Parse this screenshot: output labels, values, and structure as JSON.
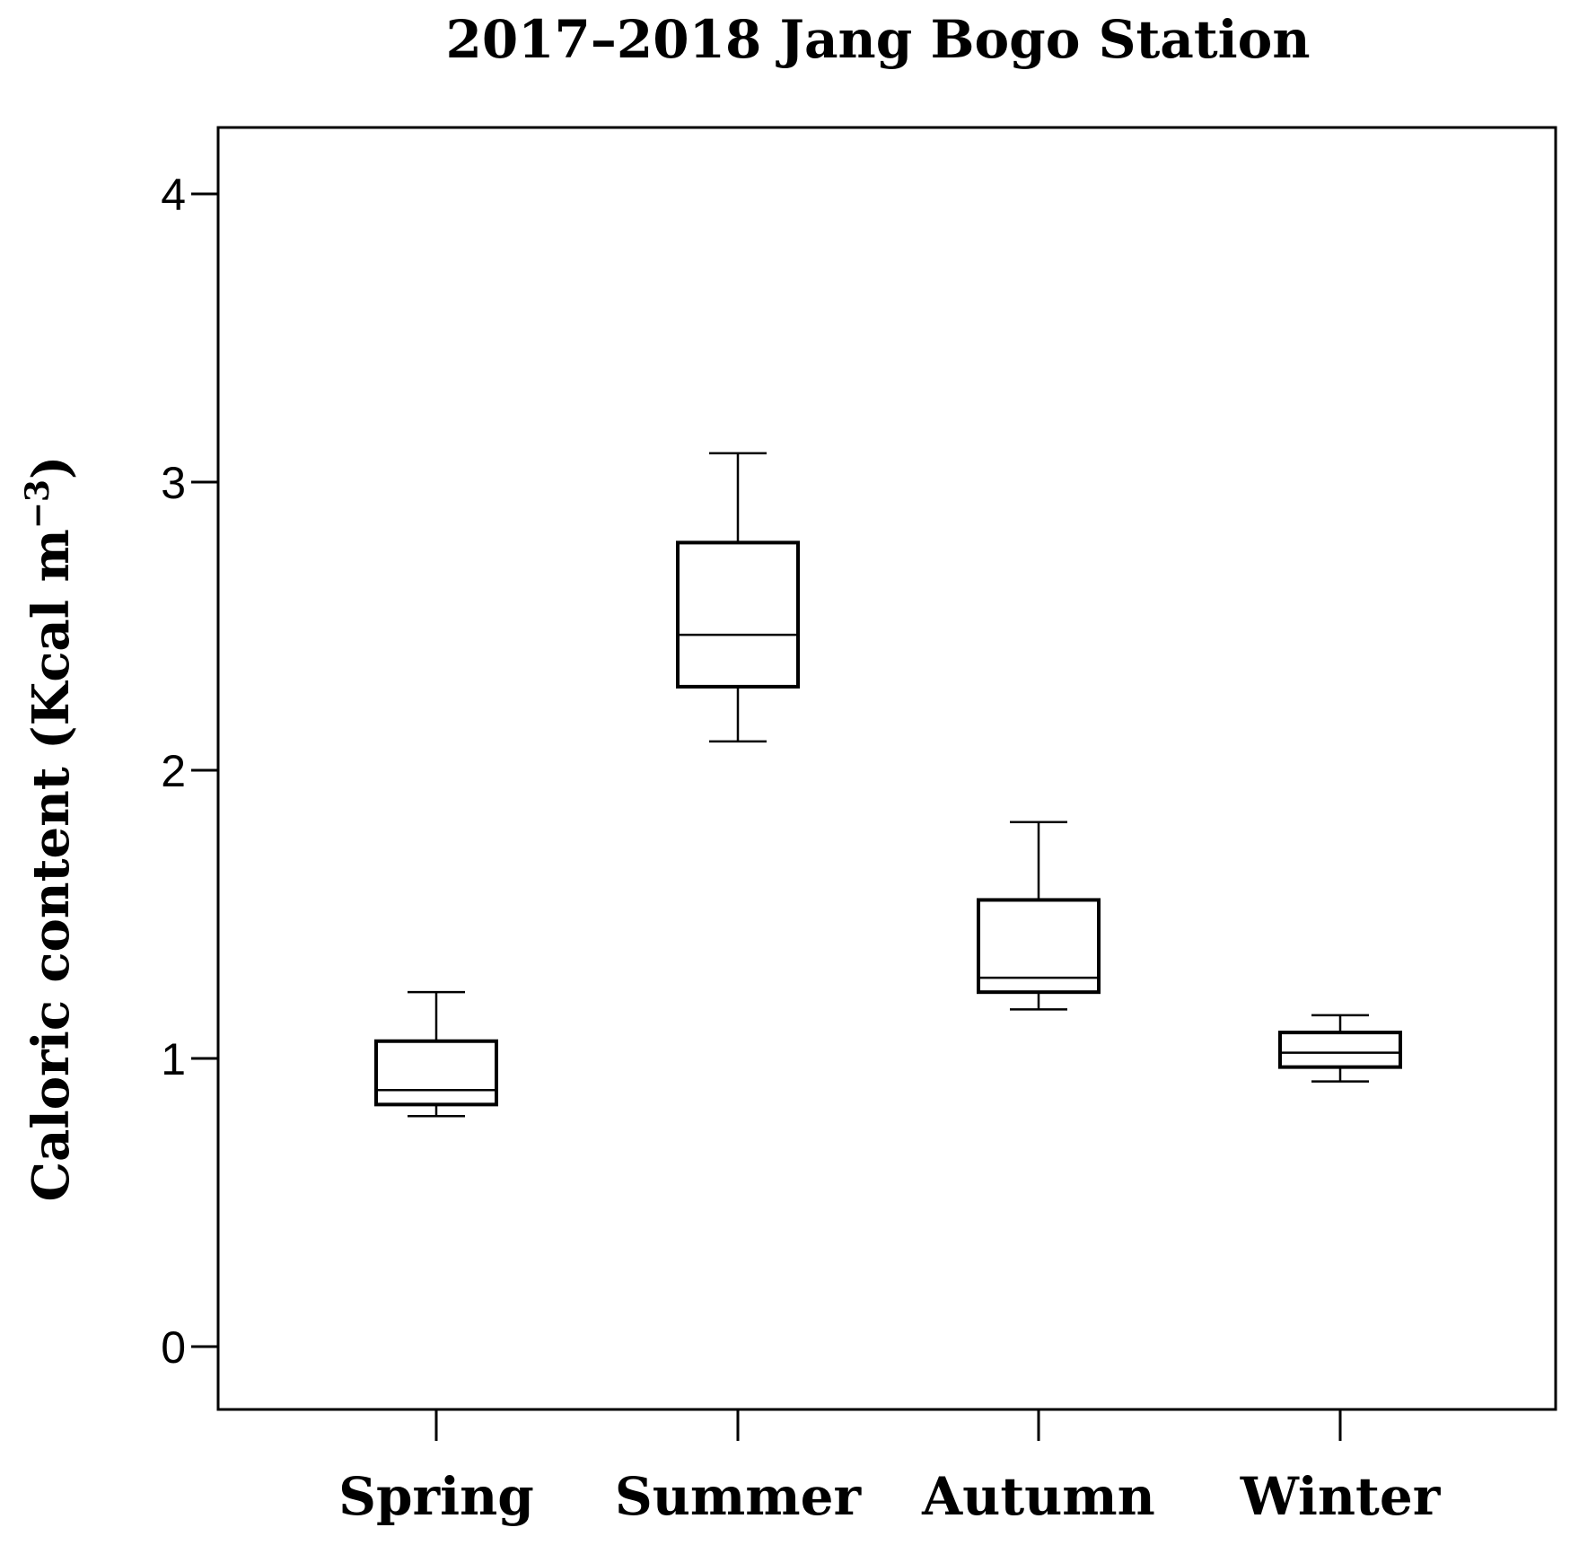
{
  "chart_data": {
    "type": "box",
    "title": "2017–2018 Jang Bogo Station",
    "ylabel_main": "Caloric content (Kcal m",
    "ylabel_sup": "−3",
    "ylabel_end": ")",
    "xlabel": "",
    "ylim": [
      -0.2,
      4.22
    ],
    "yticks": [
      0,
      1,
      2,
      3,
      4
    ],
    "ytick_labels": [
      "0",
      "1",
      "2",
      "3",
      "4"
    ],
    "grid": false,
    "categories": [
      "Spring",
      "Summer",
      "Autumn",
      "Winter"
    ],
    "boxes": [
      {
        "category": "Spring",
        "whisker_low": 0.8,
        "q1": 0.84,
        "median": 0.89,
        "q3": 1.06,
        "whisker_high": 1.23
      },
      {
        "category": "Summer",
        "whisker_low": 2.1,
        "q1": 2.29,
        "median": 2.47,
        "q3": 2.79,
        "whisker_high": 3.1
      },
      {
        "category": "Autumn",
        "whisker_low": 1.17,
        "q1": 1.23,
        "median": 1.28,
        "q3": 1.55,
        "whisker_high": 1.82
      },
      {
        "category": "Winter",
        "whisker_low": 0.92,
        "q1": 0.97,
        "median": 1.02,
        "q3": 1.09,
        "whisker_high": 1.15
      }
    ]
  }
}
